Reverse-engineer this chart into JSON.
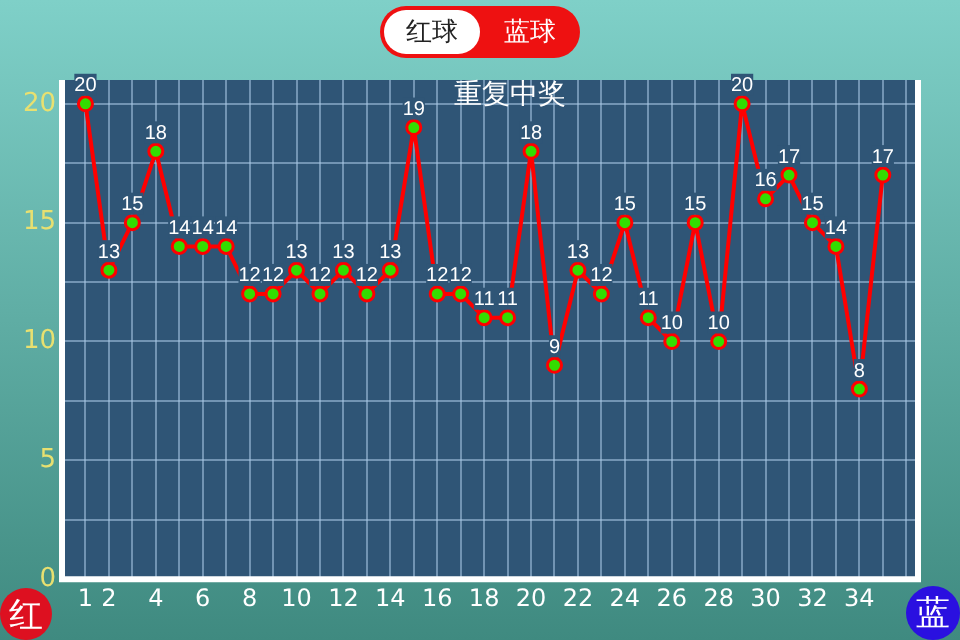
{
  "chart_data": {
    "type": "line",
    "title": "重复中奖",
    "x": [
      1,
      2,
      3,
      4,
      5,
      6,
      7,
      8,
      9,
      10,
      11,
      12,
      13,
      14,
      15,
      16,
      17,
      18,
      19,
      20,
      21,
      22,
      23,
      24,
      25,
      26,
      27,
      28,
      29,
      30,
      31,
      32,
      33,
      34,
      35
    ],
    "series": [
      {
        "color": "#ff0000",
        "values": [
          20,
          13,
          15,
          18,
          14,
          14,
          14,
          12,
          12,
          13,
          12,
          13,
          12,
          13,
          19,
          12,
          12,
          11,
          11,
          18,
          9,
          13,
          12,
          15,
          11,
          10,
          15,
          10,
          20,
          16,
          17,
          15,
          14,
          8,
          17
        ]
      }
    ],
    "xlim": [
      0,
      36.5
    ],
    "xticks": [
      1,
      2,
      {
        "value": 3,
        "label": null
      },
      4,
      {
        "value": 5,
        "label": null
      },
      6,
      {
        "value": 7,
        "label": null
      },
      8,
      {
        "value": 9,
        "label": null
      },
      10,
      {
        "value": 11,
        "label": null
      },
      12,
      {
        "value": 13,
        "label": null
      },
      14,
      {
        "value": 15,
        "label": null
      },
      16,
      {
        "value": 17,
        "label": null
      },
      18,
      {
        "value": 19,
        "label": null
      },
      20,
      {
        "value": 21,
        "label": null
      },
      22,
      {
        "value": 23,
        "label": null
      },
      24,
      {
        "value": 25,
        "label": null
      },
      26,
      {
        "value": 27,
        "label": null
      },
      28,
      {
        "value": 29,
        "label": null
      },
      30,
      {
        "value": 31,
        "label": null
      },
      32,
      {
        "value": 33,
        "label": null
      },
      34,
      {
        "value": 35,
        "label": null
      },
      {
        "value": 36,
        "label": null
      }
    ],
    "ylim": [
      0,
      21
    ],
    "yticks": [
      0,
      {
        "value": 2.5,
        "label": null
      },
      5,
      {
        "value": 7.5,
        "label": null
      },
      10,
      {
        "value": 12.5,
        "label": null
      },
      15,
      {
        "value": 17.5,
        "label": null
      },
      20
    ],
    "grid": true,
    "marker": "circle",
    "line_style": "solid",
    "data_labels": true,
    "legend": false,
    "annotations": [
      "红球",
      "蓝球",
      "红",
      "蓝"
    ]
  }
}
